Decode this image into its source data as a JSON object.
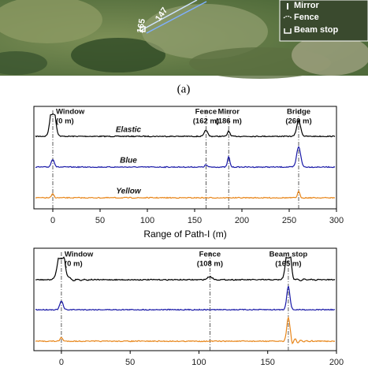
{
  "image": {
    "route_labels": [
      "147",
      "165"
    ],
    "legend": [
      "Mirror",
      "Fence",
      "Beam stop"
    ]
  },
  "caption": "(a)",
  "chart_data": [
    {
      "type": "line",
      "xlabel": "Range of Path-I (m)",
      "xlim": [
        -20,
        300
      ],
      "xticks": [
        0,
        50,
        100,
        150,
        200,
        250,
        300
      ],
      "series": [
        {
          "name": "Elastic",
          "color": "#000000"
        },
        {
          "name": "Blue",
          "color": "#1a1aa8"
        },
        {
          "name": "Yellow",
          "color": "#e8861a"
        }
      ],
      "markers": [
        {
          "x": 0,
          "name": "Window",
          "detail": "(0 m)"
        },
        {
          "x": 162,
          "name": "Fence",
          "detail": "(162 m)"
        },
        {
          "x": 186,
          "name": "Mirror",
          "detail": "(186 m)"
        },
        {
          "x": 260,
          "name": "Bridge",
          "detail": "(260 m)"
        }
      ]
    },
    {
      "type": "line",
      "xlim": [
        -20,
        200
      ],
      "xticks": [
        0,
        50,
        100,
        150,
        200
      ],
      "series": [
        {
          "color": "#000000"
        },
        {
          "color": "#1a1aa8"
        },
        {
          "color": "#e8861a"
        }
      ],
      "markers": [
        {
          "x": 0,
          "name": "Window",
          "detail": "(0 m)"
        },
        {
          "x": 108,
          "name": "Fence",
          "detail": "(108 m)"
        },
        {
          "x": 165,
          "name": "Beam stop",
          "detail": "(165 m)"
        }
      ]
    }
  ]
}
